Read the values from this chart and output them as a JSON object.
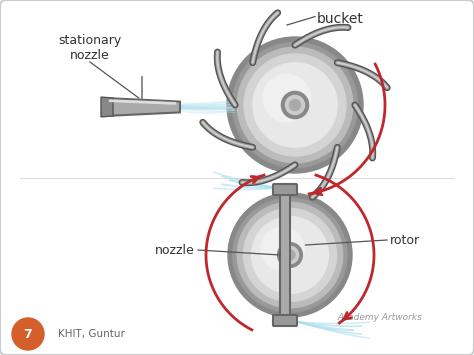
{
  "bg_color": "#f7f7f7",
  "border_color": "#cccccc",
  "text_color": "#333333",
  "red_color": "#c0272d",
  "metal_outer": "#888888",
  "metal_mid": "#aaaaaa",
  "metal_light": "#cccccc",
  "metal_lighter": "#e0e0e0",
  "metal_dark": "#666666",
  "metal_darkest": "#444444",
  "labels": {
    "bucket": "bucket",
    "stationary_nozzle": "stationary\nnozzle",
    "nozzle": "nozzle",
    "rotor": "rotor",
    "watermark": "Academy Artworks",
    "page_num": "7",
    "footer": "KHIT, Guntur"
  }
}
